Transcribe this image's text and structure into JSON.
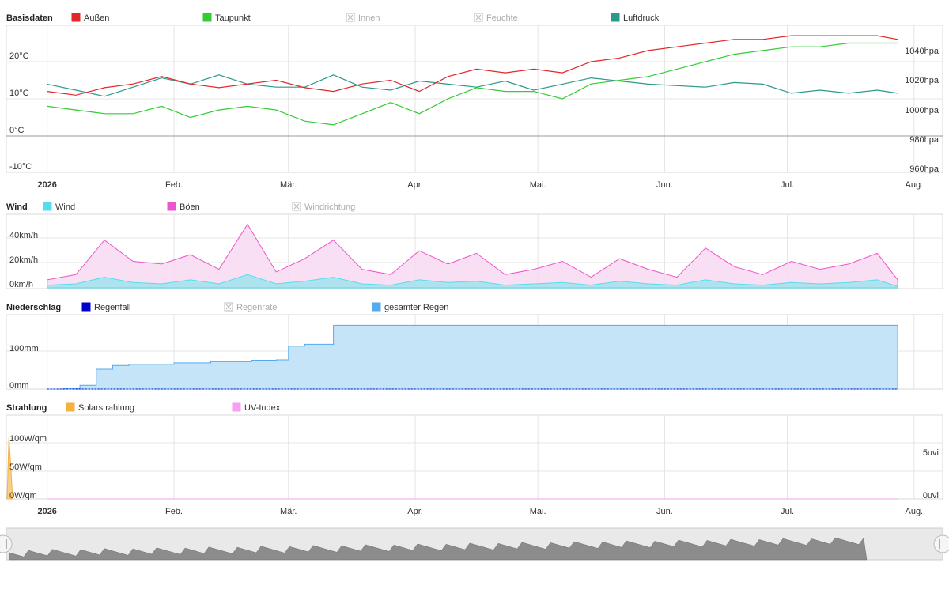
{
  "months": [
    "2026",
    "Feb.",
    "Mär.",
    "Apr.",
    "Mai.",
    "Jun.",
    "Jul.",
    "Aug."
  ],
  "nav_months": [
    "2026",
    "Feb.",
    "Mär.",
    "Apr.",
    "Mai.",
    "Jun.",
    "Jul.",
    "Aug."
  ],
  "panels": {
    "basis": {
      "title": "Basisdaten",
      "legend": [
        {
          "label": "Außen",
          "color": "#e3262a",
          "active": true
        },
        {
          "label": "Taupunkt",
          "color": "#33cc33",
          "active": true
        },
        {
          "label": "Innen",
          "color": "#bbbbbb",
          "active": false
        },
        {
          "label": "Feuchte",
          "color": "#bbbbbb",
          "active": false
        },
        {
          "label": "Luftdruck",
          "color": "#2a9a8a",
          "active": true
        }
      ],
      "left_ticks": [
        "20°C",
        "10°C",
        "0°C",
        "-10°C"
      ],
      "right_ticks": [
        "1040hpa",
        "1020hpa",
        "1000hpa",
        "980hpa",
        "960hpa"
      ]
    },
    "wind": {
      "title": "Wind",
      "legend": [
        {
          "label": "Wind",
          "color": "#55ddee",
          "active": true
        },
        {
          "label": "Böen",
          "color": "#ee55cc",
          "active": true
        },
        {
          "label": "Windrichtung",
          "color": "#bbbbbb",
          "active": false
        }
      ],
      "left_ticks": [
        "40km/h",
        "20km/h",
        "0km/h"
      ]
    },
    "rain": {
      "title": "Niederschlag",
      "legend": [
        {
          "label": "Regenfall",
          "color": "#0000cc",
          "active": true
        },
        {
          "label": "Regenrate",
          "color": "#bbbbbb",
          "active": false
        },
        {
          "label": "gesamter Regen",
          "color": "#55aaee",
          "active": true
        }
      ],
      "left_ticks": [
        "100mm",
        "0mm"
      ]
    },
    "solar": {
      "title": "Strahlung",
      "legend": [
        {
          "label": "Solarstrahlung",
          "color": "#f5b040",
          "active": true
        },
        {
          "label": "UV-Index",
          "color": "#f5a0f0",
          "active": true
        }
      ],
      "left_ticks": [
        "100W/qm",
        "50W/qm",
        "0W/qm"
      ],
      "right_ticks": [
        "5uvi",
        "0uvi"
      ]
    }
  },
  "chart_data": [
    {
      "type": "line",
      "title": "Basisdaten",
      "x_range": [
        "2026-01-01",
        "2026-08-01"
      ],
      "ylim": [
        -10,
        30
      ],
      "ylim_right": [
        960,
        1040
      ],
      "series": [
        {
          "name": "Außen",
          "axis": "°C",
          "color": "#e3262a",
          "x": [
            "2026-01-01",
            "2026-01-08",
            "2026-01-15",
            "2026-01-22",
            "2026-01-29",
            "2026-02-05",
            "2026-02-12",
            "2026-02-19",
            "2026-02-26",
            "2026-03-05",
            "2026-03-12",
            "2026-03-19",
            "2026-03-26",
            "2026-04-02",
            "2026-04-09",
            "2026-04-16",
            "2026-04-23",
            "2026-04-30",
            "2026-05-07",
            "2026-05-14",
            "2026-05-21",
            "2026-05-28",
            "2026-06-04",
            "2026-06-11",
            "2026-06-18",
            "2026-06-25",
            "2026-07-02",
            "2026-07-09",
            "2026-07-16",
            "2026-07-23",
            "2026-07-28"
          ],
          "y": [
            12,
            11,
            13,
            14,
            16,
            14,
            13,
            14,
            15,
            13,
            12,
            14,
            15,
            12,
            16,
            18,
            17,
            18,
            17,
            20,
            21,
            23,
            24,
            25,
            26,
            26,
            27,
            27,
            27,
            27,
            26
          ]
        },
        {
          "name": "Taupunkt",
          "axis": "°C",
          "color": "#33cc33",
          "x": [
            "2026-01-01",
            "2026-01-08",
            "2026-01-15",
            "2026-01-22",
            "2026-01-29",
            "2026-02-05",
            "2026-02-12",
            "2026-02-19",
            "2026-02-26",
            "2026-03-05",
            "2026-03-12",
            "2026-03-19",
            "2026-03-26",
            "2026-04-02",
            "2026-04-09",
            "2026-04-16",
            "2026-04-23",
            "2026-04-30",
            "2026-05-07",
            "2026-05-14",
            "2026-05-21",
            "2026-05-28",
            "2026-06-04",
            "2026-06-11",
            "2026-06-18",
            "2026-06-25",
            "2026-07-02",
            "2026-07-09",
            "2026-07-16",
            "2026-07-23",
            "2026-07-28"
          ],
          "y": [
            8,
            7,
            6,
            6,
            8,
            5,
            7,
            8,
            7,
            4,
            3,
            6,
            9,
            6,
            10,
            13,
            12,
            12,
            10,
            14,
            15,
            16,
            18,
            20,
            22,
            23,
            24,
            24,
            25,
            25,
            25
          ]
        },
        {
          "name": "Luftdruck",
          "axis": "hpa",
          "color": "#2a9a8a",
          "x": [
            "2026-01-01",
            "2026-01-08",
            "2026-01-15",
            "2026-01-22",
            "2026-01-29",
            "2026-02-05",
            "2026-02-12",
            "2026-02-19",
            "2026-02-26",
            "2026-03-05",
            "2026-03-12",
            "2026-03-19",
            "2026-03-26",
            "2026-04-02",
            "2026-04-09",
            "2026-04-16",
            "2026-04-23",
            "2026-04-30",
            "2026-05-07",
            "2026-05-14",
            "2026-05-21",
            "2026-05-28",
            "2026-06-04",
            "2026-06-11",
            "2026-06-18",
            "2026-06-25",
            "2026-07-02",
            "2026-07-09",
            "2026-07-16",
            "2026-07-23",
            "2026-07-28"
          ],
          "y": [
            1018,
            1014,
            1010,
            1016,
            1022,
            1018,
            1024,
            1018,
            1016,
            1016,
            1024,
            1016,
            1014,
            1020,
            1018,
            1016,
            1020,
            1014,
            1018,
            1022,
            1020,
            1018,
            1017,
            1016,
            1019,
            1018,
            1012,
            1014,
            1012,
            1014,
            1012
          ]
        }
      ]
    },
    {
      "type": "area",
      "title": "Wind",
      "x_range": [
        "2026-01-01",
        "2026-08-01"
      ],
      "ylim": [
        0,
        50
      ],
      "series": [
        {
          "name": "Böen",
          "color": "#ee55cc",
          "x": [
            "2026-01-01",
            "2026-01-08",
            "2026-01-15",
            "2026-01-22",
            "2026-01-29",
            "2026-02-05",
            "2026-02-12",
            "2026-02-19",
            "2026-02-26",
            "2026-03-05",
            "2026-03-12",
            "2026-03-19",
            "2026-03-26",
            "2026-04-02",
            "2026-04-09",
            "2026-04-16",
            "2026-04-23",
            "2026-04-30",
            "2026-05-07",
            "2026-05-14",
            "2026-05-21",
            "2026-05-28",
            "2026-06-04",
            "2026-06-11",
            "2026-06-18",
            "2026-06-25",
            "2026-07-02",
            "2026-07-09",
            "2026-07-16",
            "2026-07-23",
            "2026-07-28"
          ],
          "y": [
            6,
            10,
            36,
            20,
            18,
            25,
            14,
            48,
            12,
            22,
            36,
            14,
            10,
            28,
            18,
            26,
            10,
            14,
            20,
            8,
            22,
            14,
            8,
            30,
            16,
            10,
            20,
            14,
            18,
            26,
            6
          ]
        },
        {
          "name": "Wind",
          "color": "#55ddee",
          "x": [
            "2026-01-01",
            "2026-01-08",
            "2026-01-15",
            "2026-01-22",
            "2026-01-29",
            "2026-02-05",
            "2026-02-12",
            "2026-02-19",
            "2026-02-26",
            "2026-03-05",
            "2026-03-12",
            "2026-03-19",
            "2026-03-26",
            "2026-04-02",
            "2026-04-09",
            "2026-04-16",
            "2026-04-23",
            "2026-04-30",
            "2026-05-07",
            "2026-05-14",
            "2026-05-21",
            "2026-05-28",
            "2026-06-04",
            "2026-06-11",
            "2026-06-18",
            "2026-06-25",
            "2026-07-02",
            "2026-07-09",
            "2026-07-16",
            "2026-07-23",
            "2026-07-28"
          ],
          "y": [
            2,
            3,
            8,
            4,
            3,
            6,
            3,
            10,
            3,
            5,
            8,
            3,
            2,
            6,
            4,
            5,
            2,
            3,
            4,
            2,
            5,
            3,
            2,
            6,
            3,
            2,
            4,
            3,
            4,
            6,
            1
          ]
        }
      ]
    },
    {
      "type": "area",
      "title": "Niederschlag",
      "x_range": [
        "2026-01-01",
        "2026-08-01"
      ],
      "ylim": [
        0,
        175
      ],
      "series": [
        {
          "name": "gesamter Regen",
          "color": "#55aaee",
          "x": [
            "2026-01-01",
            "2026-01-05",
            "2026-01-09",
            "2026-01-13",
            "2026-01-17",
            "2026-01-21",
            "2026-02-01",
            "2026-02-10",
            "2026-02-20",
            "2026-02-26",
            "2026-03-01",
            "2026-03-05",
            "2026-03-12",
            "2026-07-28"
          ],
          "y": [
            0,
            1,
            10,
            52,
            62,
            65,
            69,
            72,
            76,
            77,
            113,
            118,
            168,
            168
          ]
        },
        {
          "name": "Regenfall",
          "color": "#0000cc",
          "x": [
            "2026-01-01",
            "2026-07-28"
          ],
          "y": [
            0,
            0
          ]
        }
      ]
    },
    {
      "type": "area",
      "title": "Strahlung",
      "x_range": [
        "2026-01-01",
        "2026-08-01"
      ],
      "ylim": [
        0,
        120
      ],
      "ylim_right": [
        0,
        8
      ],
      "series": [
        {
          "name": "Solarstrahlung",
          "color": "#f5b040",
          "x": [
            "2026-01-01",
            "2026-01-02",
            "2026-01-03",
            "2026-01-04"
          ],
          "y": [
            0,
            110,
            60,
            0
          ]
        },
        {
          "name": "UV-Index",
          "axis": "uvi",
          "color": "#f5a0f0",
          "x": [
            "2026-01-01",
            "2026-07-28"
          ],
          "y": [
            0,
            0
          ]
        }
      ]
    }
  ]
}
